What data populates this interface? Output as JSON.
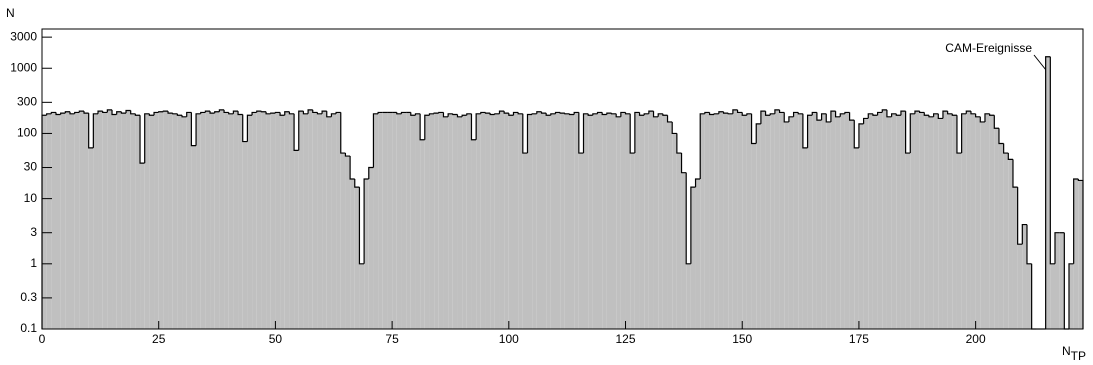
{
  "chart_data": {
    "type": "histogram",
    "y_label": "N",
    "x_label": "N",
    "x_label_sub": "TP",
    "annotation": "CAM-Ereignisse",
    "color": "#c0c0c0",
    "log_y": true,
    "bins": [
      0,
      1,
      2,
      3,
      4,
      5,
      6,
      7,
      8,
      9,
      10,
      11,
      12,
      13,
      14,
      15,
      16,
      17,
      18,
      19,
      20,
      21,
      22,
      23,
      24,
      25,
      26,
      27,
      28,
      29,
      30,
      31,
      32,
      33,
      34,
      35,
      36,
      37,
      38,
      39,
      40,
      41,
      42,
      43,
      44,
      45,
      46,
      47,
      48,
      49,
      50,
      51,
      52,
      53,
      54,
      55,
      56,
      57,
      58,
      59,
      60,
      61,
      62,
      63,
      64,
      65,
      66,
      67,
      68,
      69,
      70,
      71,
      72,
      73,
      74,
      75,
      76,
      77,
      78,
      79,
      80,
      81,
      82,
      83,
      84,
      85,
      86,
      87,
      88,
      89,
      90,
      91,
      92,
      93,
      94,
      95,
      96,
      97,
      98,
      99,
      100,
      101,
      102,
      103,
      104,
      105,
      106,
      107,
      108,
      109,
      110,
      111,
      112,
      113,
      114,
      115,
      116,
      117,
      118,
      119,
      120,
      121,
      122,
      123,
      124,
      125,
      126,
      127,
      128,
      129,
      130,
      131,
      132,
      133,
      134,
      135,
      136,
      137,
      138,
      139,
      140,
      141,
      142,
      143,
      144,
      145,
      146,
      147,
      148,
      149,
      150,
      151,
      152,
      153,
      154,
      155,
      156,
      157,
      158,
      159,
      160,
      161,
      162,
      163,
      164,
      165,
      166,
      167,
      168,
      169,
      170,
      171,
      172,
      173,
      174,
      175,
      176,
      177,
      178,
      179,
      180,
      181,
      182,
      183,
      184,
      185,
      186,
      187,
      188,
      189,
      190,
      191,
      192,
      193,
      194,
      195,
      196,
      197,
      198,
      199,
      200,
      201,
      202,
      203,
      204,
      205,
      206,
      207,
      208,
      209,
      210,
      211,
      212,
      213,
      214,
      215,
      216,
      217,
      218,
      219,
      220,
      221,
      222,
      223
    ],
    "values": [
      190,
      200,
      210,
      195,
      205,
      215,
      200,
      210,
      220,
      205,
      60,
      200,
      220,
      210,
      230,
      195,
      215,
      205,
      225,
      200,
      190,
      35,
      200,
      190,
      210,
      215,
      220,
      205,
      200,
      190,
      180,
      210,
      65,
      200,
      210,
      220,
      205,
      215,
      230,
      210,
      200,
      220,
      195,
      75,
      190,
      210,
      220,
      215,
      200,
      205,
      210,
      190,
      215,
      200,
      55,
      220,
      200,
      230,
      210,
      200,
      220,
      180,
      200,
      210,
      50,
      45,
      20,
      15,
      1,
      20,
      30,
      200,
      210,
      210,
      210,
      210,
      200,
      210,
      210,
      190,
      200,
      80,
      190,
      200,
      205,
      210,
      180,
      200,
      195,
      180,
      190,
      200,
      80,
      200,
      210,
      205,
      195,
      200,
      220,
      205,
      190,
      210,
      200,
      50,
      195,
      200,
      215,
      205,
      190,
      200,
      210,
      205,
      200,
      195,
      210,
      50,
      200,
      190,
      200,
      210,
      195,
      205,
      200,
      180,
      210,
      200,
      50,
      210,
      190,
      200,
      220,
      180,
      200,
      190,
      150,
      100,
      50,
      25,
      1,
      15,
      20,
      200,
      210,
      195,
      200,
      215,
      205,
      200,
      230,
      210,
      190,
      200,
      70,
      140,
      220,
      190,
      200,
      230,
      210,
      150,
      180,
      210,
      200,
      60,
      190,
      210,
      160,
      200,
      150,
      220,
      180,
      200,
      210,
      160,
      60,
      140,
      170,
      200,
      190,
      210,
      230,
      180,
      200,
      190,
      220,
      50,
      200,
      220,
      210,
      190,
      180,
      200,
      170,
      220,
      200,
      190,
      50,
      200,
      220,
      200,
      180,
      150,
      200,
      190,
      120,
      70,
      50,
      40,
      15,
      2,
      4,
      1,
      0,
      0,
      0,
      1500,
      1,
      3,
      3,
      0,
      1,
      20,
      19
    ],
    "xlim": [
      0,
      223
    ],
    "xticks": [
      0,
      25,
      50,
      75,
      100,
      125,
      150,
      175,
      200
    ],
    "ylim": [
      0.1,
      4000
    ],
    "yticks": [
      0.1,
      0.3,
      1,
      3,
      10,
      30,
      100,
      300,
      1000,
      3000
    ]
  }
}
